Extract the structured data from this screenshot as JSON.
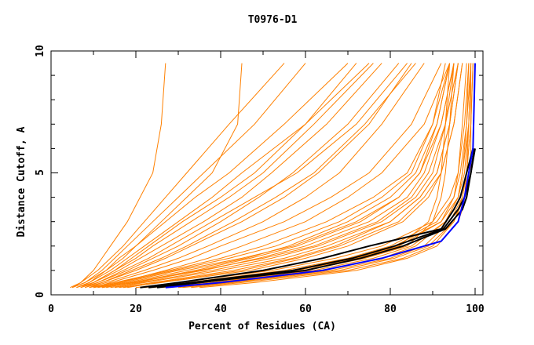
{
  "chart_data": {
    "type": "line",
    "title": "T0976-D1",
    "xlabel": "Percent of Residues (CA)",
    "ylabel": "Distance Cutoff, A",
    "xlim": [
      0,
      100
    ],
    "ylim": [
      0,
      10
    ],
    "xticks": [
      "0",
      "20",
      "40",
      "60",
      "80",
      "100"
    ],
    "yticks": [
      "0",
      "5",
      "10"
    ],
    "grid": false,
    "colors": {
      "models": "#ff8000",
      "highlight_black": "#000000",
      "highlight_blue": "#0000ff"
    },
    "model_y_levels": [
      0.3,
      0.5,
      1,
      1.5,
      2,
      3,
      4,
      5,
      7,
      9.5
    ],
    "model_series_x": [
      [
        28,
        38,
        62,
        76,
        85,
        93,
        96,
        97.5,
        98.5,
        99
      ],
      [
        30,
        42,
        66,
        80,
        88,
        94,
        97,
        98,
        99,
        99.5
      ],
      [
        25,
        36,
        58,
        72,
        82,
        92,
        96,
        97,
        98.5,
        99
      ],
      [
        33,
        45,
        70,
        83,
        90,
        95,
        97.5,
        98,
        99,
        99
      ],
      [
        22,
        32,
        55,
        70,
        80,
        91,
        95,
        96.5,
        98,
        99
      ],
      [
        35,
        48,
        72,
        84,
        91,
        96,
        98,
        99,
        99,
        99.5
      ],
      [
        20,
        30,
        52,
        67,
        78,
        90,
        94,
        96,
        97.5,
        98.5
      ],
      [
        27,
        40,
        64,
        78,
        86,
        93,
        96,
        97,
        98,
        98.5
      ],
      [
        31,
        43,
        68,
        81,
        89,
        95,
        97,
        98,
        98.5,
        99
      ],
      [
        24,
        34,
        57,
        71,
        81,
        92,
        95,
        96,
        97,
        98
      ],
      [
        26,
        38,
        60,
        74,
        84,
        90,
        92,
        93,
        94,
        95
      ],
      [
        23,
        35,
        58,
        72,
        82,
        89,
        91,
        92,
        93,
        94
      ],
      [
        15,
        22,
        40,
        55,
        65,
        80,
        87,
        91,
        94,
        96
      ],
      [
        12,
        20,
        35,
        50,
        62,
        77,
        85,
        89,
        93,
        95
      ],
      [
        18,
        25,
        45,
        58,
        68,
        82,
        88,
        92,
        95,
        97
      ],
      [
        10,
        17,
        30,
        45,
        57,
        72,
        82,
        87,
        92,
        95
      ],
      [
        14,
        21,
        38,
        52,
        63,
        78,
        86,
        90,
        93,
        96
      ],
      [
        16,
        24,
        43,
        57,
        67,
        80,
        87,
        91,
        94,
        96
      ],
      [
        11,
        18,
        32,
        46,
        56,
        70,
        80,
        86,
        91,
        94
      ],
      [
        13,
        19,
        36,
        49,
        60,
        75,
        84,
        88,
        92,
        95
      ],
      [
        9,
        15,
        28,
        40,
        50,
        65,
        76,
        84,
        90,
        93
      ],
      [
        17,
        26,
        47,
        60,
        70,
        83,
        89,
        92,
        95,
        97
      ],
      [
        12,
        19,
        34,
        47,
        58,
        73,
        82,
        87,
        91,
        94
      ],
      [
        10,
        16,
        29,
        42,
        53,
        68,
        78,
        85,
        90,
        94
      ],
      [
        6,
        9,
        14,
        18,
        22,
        30,
        38,
        45,
        60,
        75
      ],
      [
        5,
        8,
        12,
        15,
        18,
        24,
        30,
        36,
        48,
        60
      ],
      [
        7,
        10,
        16,
        21,
        26,
        36,
        45,
        52,
        65,
        78
      ],
      [
        8,
        12,
        20,
        27,
        33,
        45,
        55,
        63,
        75,
        85
      ],
      [
        5,
        7,
        11,
        14,
        17,
        22,
        27,
        32,
        42,
        55
      ],
      [
        9,
        13,
        22,
        30,
        37,
        50,
        60,
        68,
        78,
        88
      ],
      [
        6,
        9,
        13,
        17,
        20,
        27,
        34,
        42,
        55,
        70
      ],
      [
        10,
        14,
        24,
        33,
        40,
        55,
        66,
        75,
        85,
        92
      ],
      [
        7,
        11,
        18,
        24,
        30,
        40,
        49,
        57,
        70,
        82
      ],
      [
        8,
        11,
        17,
        23,
        28,
        38,
        48,
        58,
        72,
        84
      ],
      [
        5,
        8,
        13,
        16,
        20,
        26,
        32,
        38,
        44,
        45
      ],
      [
        11,
        16,
        27,
        37,
        45,
        60,
        70,
        78,
        88,
        94
      ],
      [
        6,
        10,
        15,
        20,
        24,
        33,
        42,
        50,
        62,
        76
      ],
      [
        9,
        12,
        19,
        26,
        32,
        43,
        53,
        62,
        74,
        86
      ],
      [
        4.5,
        7,
        10,
        12,
        14,
        18,
        21,
        24,
        26,
        27
      ],
      [
        7,
        10,
        15,
        19,
        23,
        31,
        40,
        48,
        60,
        72
      ]
    ],
    "highlight_series": [
      {
        "name": "black-1",
        "color": "#000000",
        "x": [
          21,
          30,
          50,
          64,
          75,
          92,
          95,
          96.5,
          98,
          99.5
        ],
        "y": [
          0.3,
          0.5,
          1,
          1.5,
          2,
          2.7,
          3.5,
          4,
          5,
          6
        ]
      },
      {
        "name": "black-2",
        "color": "#000000",
        "x": [
          23,
          33,
          57,
          71,
          81,
          92.5,
          96,
          97.5,
          99,
          99.8
        ],
        "y": [
          0.3,
          0.5,
          1,
          1.5,
          2,
          2.7,
          3.5,
          4,
          5,
          6
        ]
      },
      {
        "name": "black-3",
        "color": "#000000",
        "x": [
          25,
          35,
          60,
          73,
          83,
          93,
          97,
          98,
          99,
          100
        ],
        "y": [
          0.3,
          0.5,
          1,
          1.5,
          2,
          2.7,
          3.5,
          4,
          5,
          6
        ]
      },
      {
        "name": "blue",
        "color": "#0000ff",
        "x": [
          27,
          40,
          64,
          78,
          88,
          92,
          96,
          97.5,
          98.5,
          99.5,
          100
        ],
        "y": [
          0.3,
          0.5,
          1,
          1.5,
          2,
          2.2,
          3,
          4,
          5,
          6,
          9.5
        ]
      }
    ]
  }
}
